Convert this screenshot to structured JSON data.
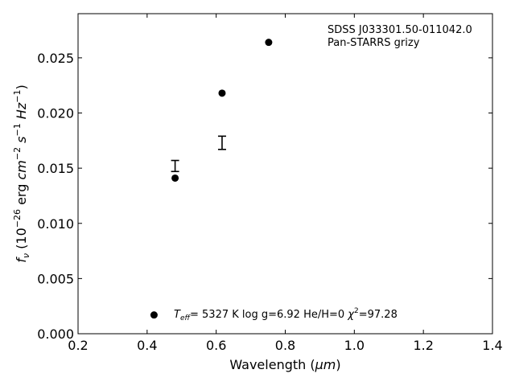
{
  "chart_data": {
    "type": "scatter",
    "xlabel_text": "Wavelength (",
    "xlabel_unit": "μm",
    "xlabel_close": ")",
    "ylabel_f": "f",
    "ylabel_sub": "ν",
    "ylabel_rest": " (10",
    "ylabel_exp1": "−26",
    "ylabel_erg": " erg ",
    "ylabel_cm": "cm",
    "ylabel_exp2": "−2",
    "ylabel_s": " s",
    "ylabel_exp3": "−1",
    "ylabel_hz": " Hz",
    "ylabel_exp4": "−1",
    "ylabel_close": ")",
    "xlim": [
      0.2,
      1.4
    ],
    "ylim": [
      0.0,
      0.029
    ],
    "xticks": [
      0.2,
      0.4,
      0.6,
      0.8,
      1.0,
      1.2,
      1.4
    ],
    "xtick_labels": [
      "0.2",
      "0.4",
      "0.6",
      "0.8",
      "1.0",
      "1.2",
      "1.4"
    ],
    "yticks": [
      0.0,
      0.005,
      0.01,
      0.015,
      0.02,
      0.025
    ],
    "ytick_labels": [
      "0.000",
      "0.005",
      "0.010",
      "0.015",
      "0.020",
      "0.025"
    ],
    "model_points": [
      {
        "x": 0.481,
        "y": 0.0141
      },
      {
        "x": 0.617,
        "y": 0.0218
      },
      {
        "x": 0.752,
        "y": 0.0264
      }
    ],
    "observed_points": [
      {
        "x": 0.481,
        "y": 0.0152,
        "yerr": 0.0005
      },
      {
        "x": 0.617,
        "y": 0.0173,
        "yerr": 0.0006
      }
    ],
    "annotation_object": "SDSS J033301.50-011042.0",
    "annotation_survey": "Pan-STARRS grizy",
    "legend_marker_x": 0.42,
    "legend_marker_y": 0.0017,
    "legend_teff_T": "T",
    "legend_teff_sub": "eff",
    "legend_teff_value": "=  5327 K  log g=6.92  He/H=0  ",
    "legend_chi": "χ",
    "legend_chi_exp": "2",
    "legend_chi_value": "=97.28",
    "colors": {
      "marker": "#000000",
      "axes": "#000000",
      "background": "#ffffff"
    }
  }
}
